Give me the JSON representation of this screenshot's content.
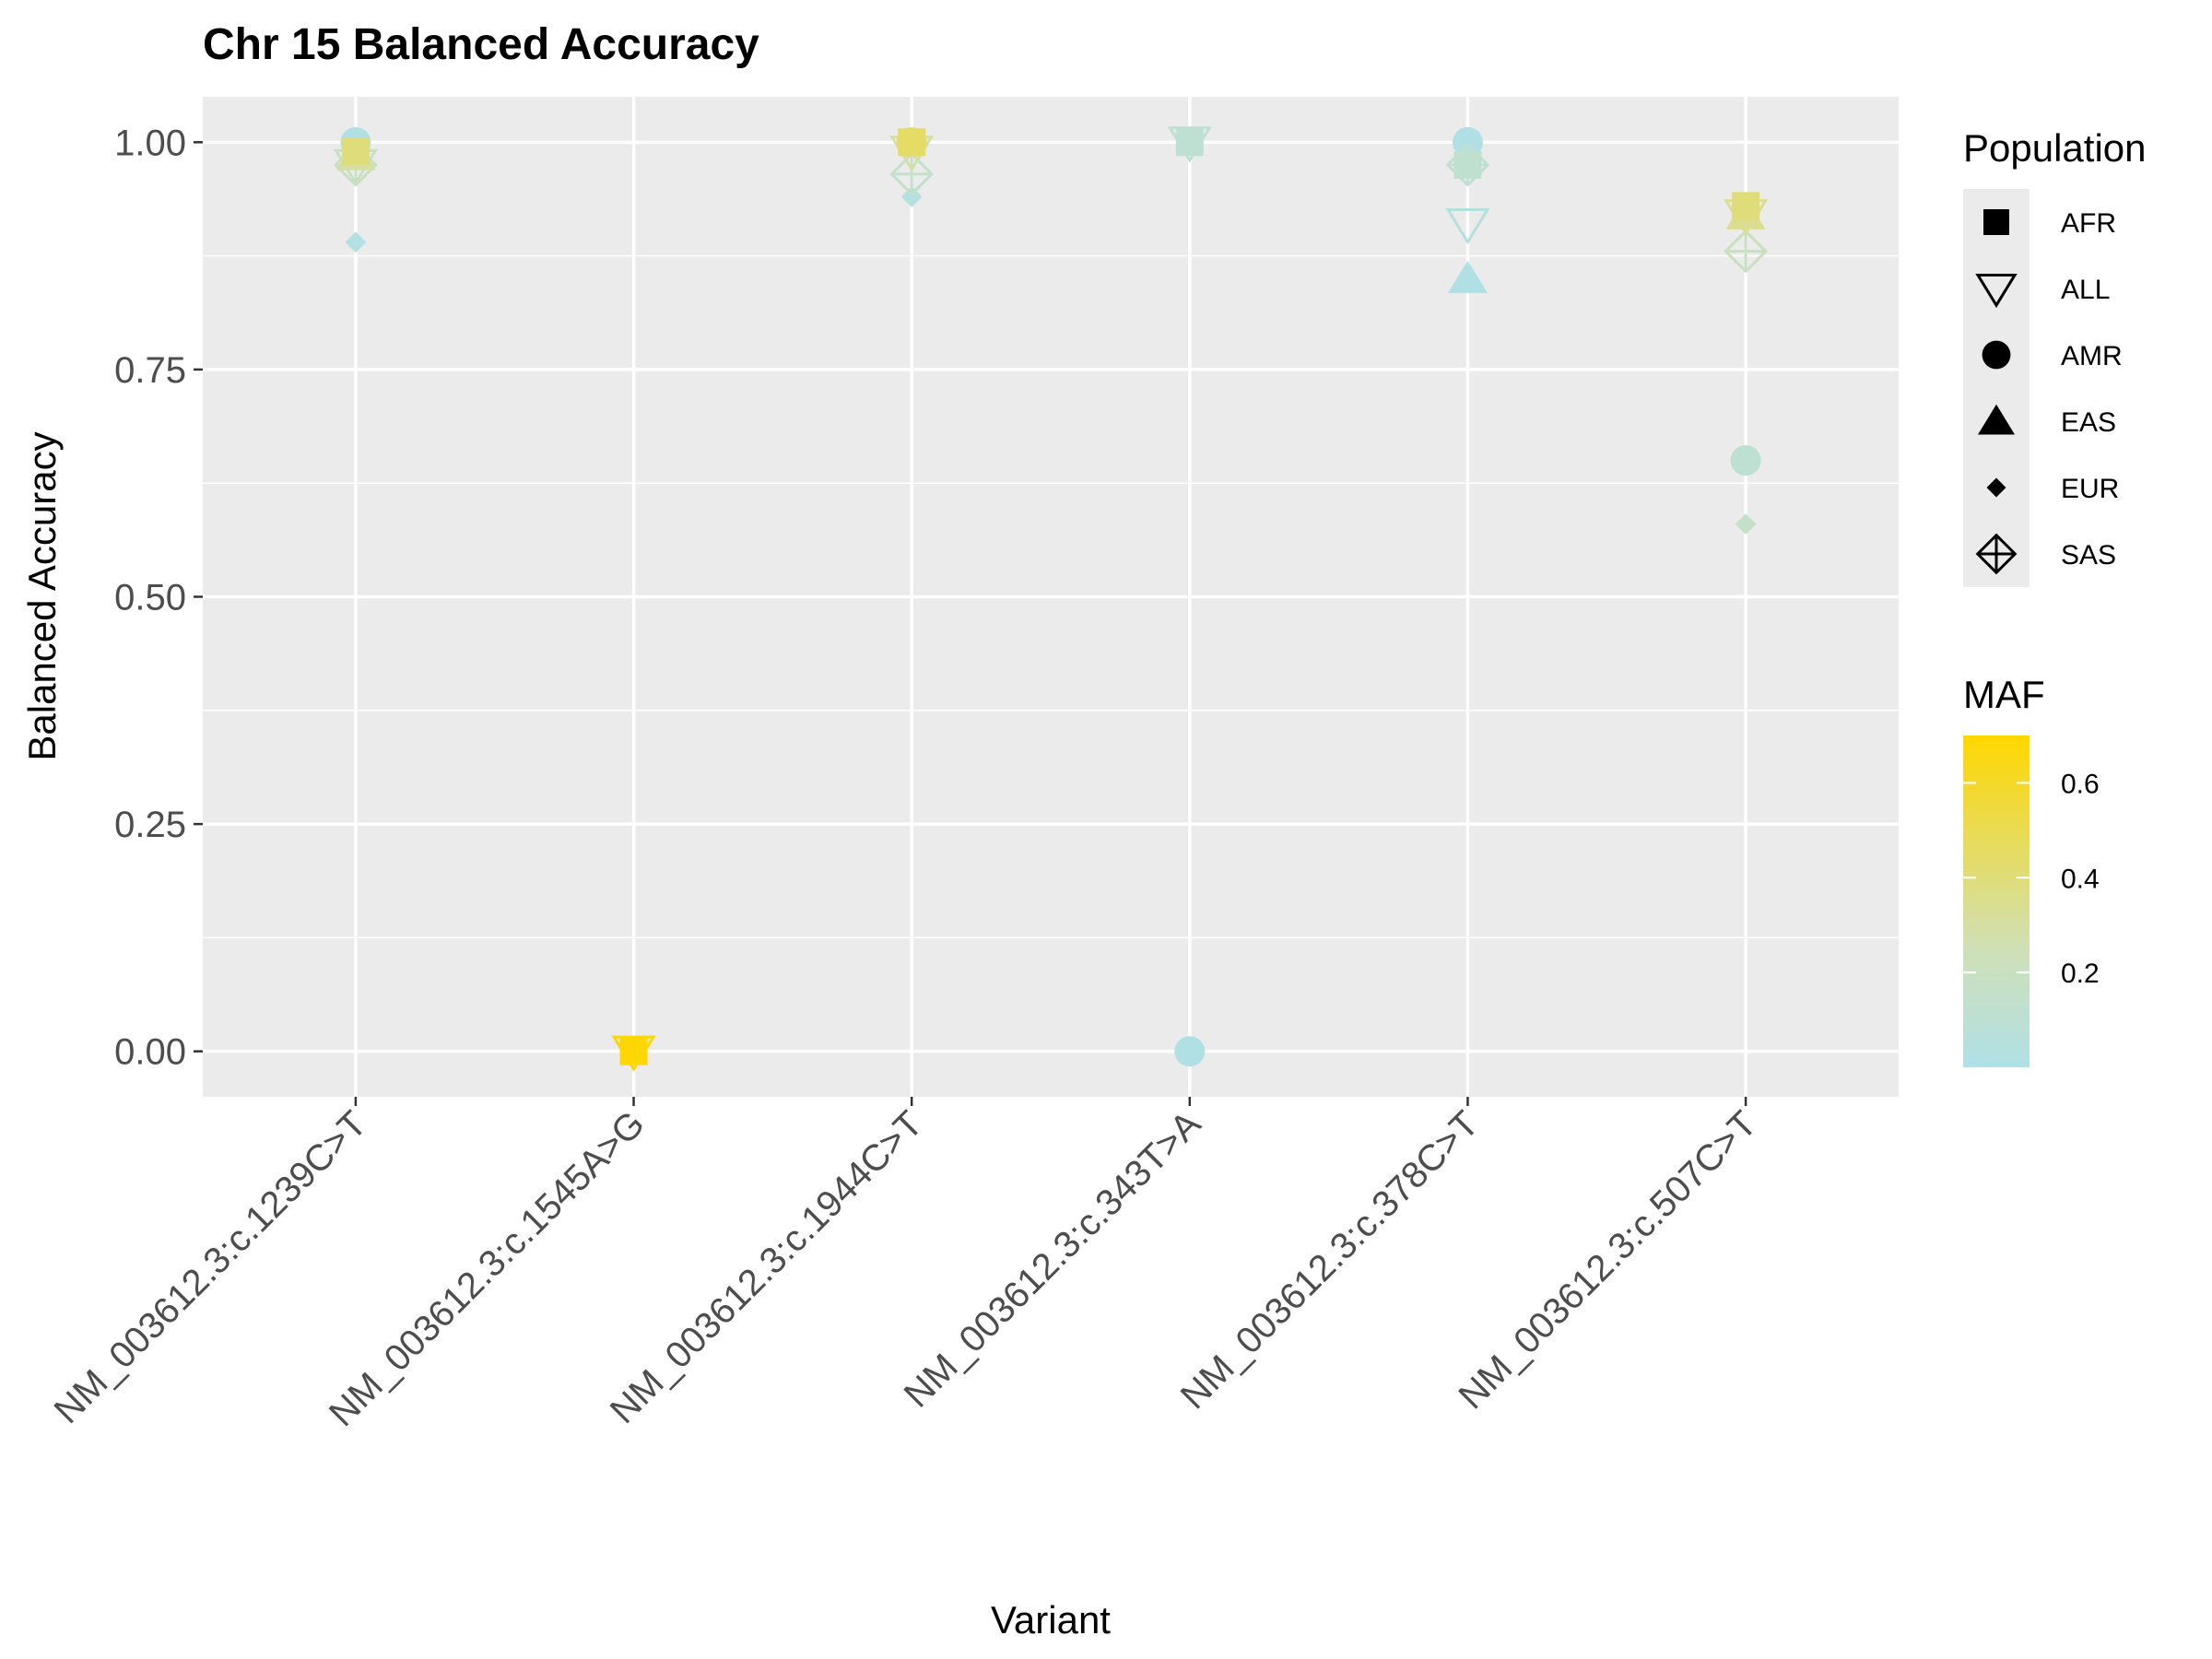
{
  "chart_data": {
    "type": "scatter",
    "title": "Chr 15 Balanced Accuracy",
    "xlabel": "Variant",
    "ylabel": "Balanced Accuracy",
    "ylim": [
      -0.05,
      1.05
    ],
    "yticks": [
      "0.00",
      "0.25",
      "0.50",
      "0.75",
      "1.00"
    ],
    "categories": [
      "NM_003612.3:c.1239C>T",
      "NM_003612.3:c.1545A>G",
      "NM_003612.3:c.1944C>T",
      "NM_003612.3:c.343T>A",
      "NM_003612.3:c.378C>T",
      "NM_003612.3:c.507C>T"
    ],
    "grid": true,
    "legend_position": "right",
    "shape_legend": {
      "title": "Population",
      "entries": [
        {
          "label": "AFR",
          "shape": "square"
        },
        {
          "label": "ALL",
          "shape": "triangle-down-open"
        },
        {
          "label": "AMR",
          "shape": "circle"
        },
        {
          "label": "EAS",
          "shape": "triangle-up"
        },
        {
          "label": "EUR",
          "shape": "diamond"
        },
        {
          "label": "SAS",
          "shape": "diamond-plus-open"
        }
      ]
    },
    "color_legend": {
      "title": "MAF",
      "low_color": "#b0e0e6",
      "mid_color": "#cfe0b8",
      "high_color": "#ffd700",
      "min": 0.0,
      "max": 0.7,
      "ticks": [
        "0.2",
        "0.4",
        "0.6"
      ]
    },
    "points": [
      {
        "variant": "NM_003612.3:c.1239C>T",
        "population": "AMR",
        "y": 1.0,
        "maf": 0.01
      },
      {
        "variant": "NM_003612.3:c.1239C>T",
        "population": "EUR",
        "y": 0.89,
        "maf": 0.02
      },
      {
        "variant": "NM_003612.3:c.1239C>T",
        "population": "ALL",
        "y": 0.975,
        "maf": 0.2
      },
      {
        "variant": "NM_003612.3:c.1239C>T",
        "population": "SAS",
        "y": 0.975,
        "maf": 0.2
      },
      {
        "variant": "NM_003612.3:c.1239C>T",
        "population": "EAS",
        "y": 0.985,
        "maf": 0.3
      },
      {
        "variant": "NM_003612.3:c.1239C>T",
        "population": "AFR",
        "y": 0.99,
        "maf": 0.4
      },
      {
        "variant": "NM_003612.3:c.1545A>G",
        "population": "ALL",
        "y": 0.0,
        "maf": 0.7
      },
      {
        "variant": "NM_003612.3:c.1545A>G",
        "population": "AFR",
        "y": 0.0,
        "maf": 0.7
      },
      {
        "variant": "NM_003612.3:c.1944C>T",
        "population": "EUR",
        "y": 0.94,
        "maf": 0.03
      },
      {
        "variant": "NM_003612.3:c.1944C>T",
        "population": "SAS",
        "y": 0.965,
        "maf": 0.15
      },
      {
        "variant": "NM_003612.3:c.1944C>T",
        "population": "ALL",
        "y": 0.99,
        "maf": 0.3
      },
      {
        "variant": "NM_003612.3:c.1944C>T",
        "population": "AMR",
        "y": 1.0,
        "maf": 0.35
      },
      {
        "variant": "NM_003612.3:c.1944C>T",
        "population": "AFR",
        "y": 1.0,
        "maf": 0.45
      },
      {
        "variant": "NM_003612.3:c.343T>A",
        "population": "AMR",
        "y": 0.0,
        "maf": 0.01
      },
      {
        "variant": "NM_003612.3:c.343T>A",
        "population": "ALL",
        "y": 1.0,
        "maf": 0.1
      },
      {
        "variant": "NM_003612.3:c.343T>A",
        "population": "AFR",
        "y": 1.0,
        "maf": 0.1
      },
      {
        "variant": "NM_003612.3:c.378C>T",
        "population": "EAS",
        "y": 0.85,
        "maf": 0.01
      },
      {
        "variant": "NM_003612.3:c.378C>T",
        "population": "ALL",
        "y": 0.91,
        "maf": 0.04
      },
      {
        "variant": "NM_003612.3:c.378C>T",
        "population": "AMR",
        "y": 1.0,
        "maf": 0.01
      },
      {
        "variant": "NM_003612.3:c.378C>T",
        "population": "EUR",
        "y": 0.975,
        "maf": 0.06
      },
      {
        "variant": "NM_003612.3:c.378C>T",
        "population": "SAS",
        "y": 0.975,
        "maf": 0.1
      },
      {
        "variant": "NM_003612.3:c.378C>T",
        "population": "AFR",
        "y": 0.975,
        "maf": 0.12
      },
      {
        "variant": "NM_003612.3:c.507C>T",
        "population": "EUR",
        "y": 0.58,
        "maf": 0.15
      },
      {
        "variant": "NM_003612.3:c.507C>T",
        "population": "AMR",
        "y": 0.65,
        "maf": 0.1
      },
      {
        "variant": "NM_003612.3:c.507C>T",
        "population": "SAS",
        "y": 0.88,
        "maf": 0.2
      },
      {
        "variant": "NM_003612.3:c.507C>T",
        "population": "ALL",
        "y": 0.92,
        "maf": 0.35
      },
      {
        "variant": "NM_003612.3:c.507C>T",
        "population": "EAS",
        "y": 0.92,
        "maf": 0.35
      },
      {
        "variant": "NM_003612.3:c.507C>T",
        "population": "AFR",
        "y": 0.93,
        "maf": 0.4
      }
    ]
  }
}
